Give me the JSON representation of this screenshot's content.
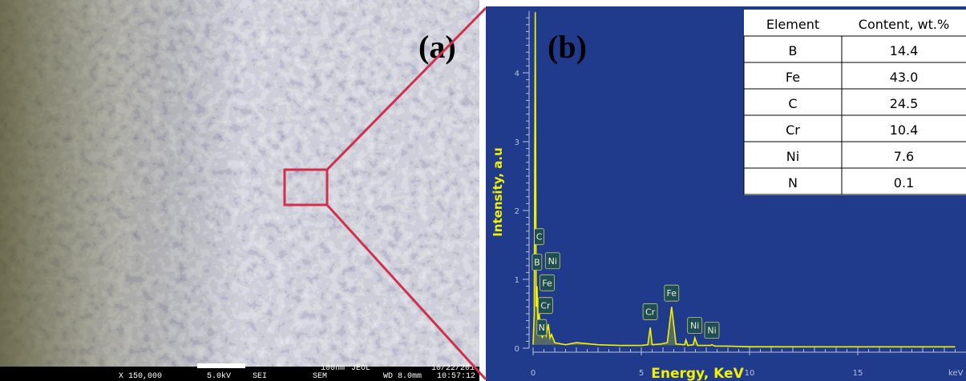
{
  "panel_a": {
    "label": "(a)",
    "info": {
      "magnification": "X 150,000",
      "voltage": "5.0kV",
      "mode": "SEI",
      "instrument": "SEM",
      "scale": "100nm",
      "maker": "JEOL",
      "date": "10/22/201",
      "distance": "WD 8.0mm",
      "time": "10:57:12"
    }
  },
  "chart_data": {
    "type": "line",
    "label": "(b)",
    "x_label": "Energy, KeV",
    "y_label": "Intensity, a.u",
    "x_unit": "keV",
    "color": "#f2f200",
    "x": [
      0,
      0.05,
      0.1,
      0.14,
      0.18,
      0.22,
      0.28,
      0.33,
      0.37,
      0.42,
      0.52,
      0.6,
      0.7,
      0.78,
      0.85,
      1.0,
      1.5,
      2,
      3,
      4,
      5,
      5.3,
      5.41,
      5.5,
      5.9,
      6.2,
      6.4,
      6.6,
      7.0,
      7.06,
      7.15,
      7.4,
      7.47,
      7.6,
      8.2,
      8.26,
      8.4,
      9,
      10,
      12,
      15,
      19.5
    ],
    "values": [
      0.05,
      0.5,
      4.88,
      0.6,
      0.9,
      0.4,
      0.5,
      0.3,
      0.35,
      0.15,
      0.25,
      0.18,
      0.35,
      0.15,
      0.2,
      0.08,
      0.05,
      0.08,
      0.05,
      0.04,
      0.04,
      0.05,
      0.3,
      0.05,
      0.06,
      0.08,
      0.6,
      0.06,
      0.05,
      0.12,
      0.04,
      0.05,
      0.15,
      0.04,
      0.04,
      0.05,
      0.03,
      0.03,
      0.02,
      0.02,
      0.02,
      0.02
    ],
    "xlim": [
      0,
      20
    ],
    "ylim": [
      0,
      4.9
    ],
    "xticks": [
      0,
      5,
      10,
      15
    ],
    "yticks": [
      0,
      1,
      2,
      3,
      4
    ],
    "annotations": [
      {
        "text": "C",
        "x": 0.28,
        "y": 1.62
      },
      {
        "text": "B",
        "x": 0.18,
        "y": 1.25
      },
      {
        "text": "Ni",
        "x": 0.9,
        "y": 1.27
      },
      {
        "text": "Fe",
        "x": 0.65,
        "y": 0.95
      },
      {
        "text": "Cr",
        "x": 0.57,
        "y": 0.62
      },
      {
        "text": "N",
        "x": 0.4,
        "y": 0.3
      },
      {
        "text": "Cr",
        "x": 5.41,
        "y": 0.53
      },
      {
        "text": "Fe",
        "x": 6.4,
        "y": 0.8
      },
      {
        "text": "Ni",
        "x": 7.47,
        "y": 0.33
      },
      {
        "text": "Ni",
        "x": 8.26,
        "y": 0.26
      }
    ]
  },
  "table": {
    "header": [
      "Element",
      "Content, wt.%"
    ],
    "rows": [
      [
        "B",
        "14.4"
      ],
      [
        "Fe",
        "43.0"
      ],
      [
        "C",
        "24.5"
      ],
      [
        "Cr",
        "10.4"
      ],
      [
        "Ni",
        "7.6"
      ],
      [
        "N",
        "0.1"
      ]
    ]
  }
}
